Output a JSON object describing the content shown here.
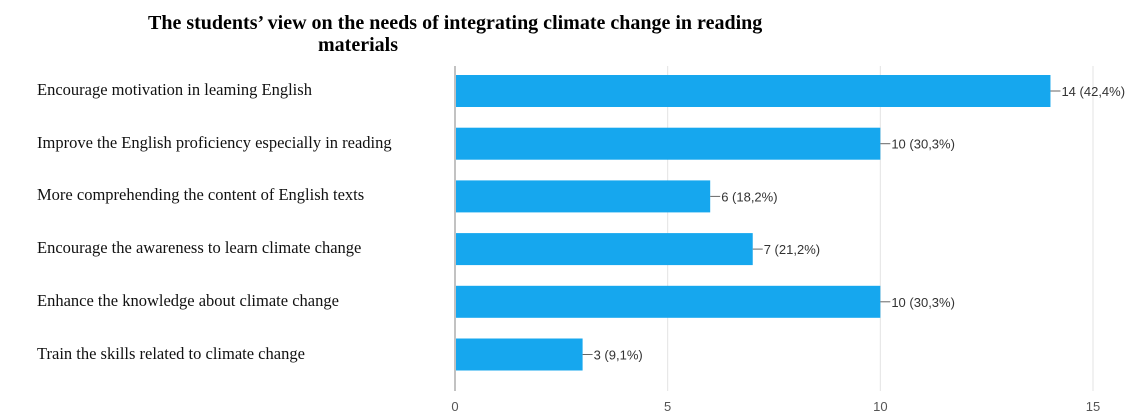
{
  "chart_data": {
    "type": "bar",
    "orientation": "horizontal",
    "title": "The students’ view on the needs of integrating climate change in reading materials",
    "categories": [
      "Encourage motivation in leaming English",
      "Improve the English proficiency especially in reading",
      "More comprehending the content of English texts",
      "Encourage the awareness to learn climate change",
      "Enhance the knowledge about climate change",
      "Train the skills related to climate change"
    ],
    "values": [
      14,
      10,
      6,
      7,
      10,
      3
    ],
    "data_labels": [
      "14 (42,4%)",
      "10 (30,3%)",
      "6 (18,2%)",
      "7 (21,2%)",
      "10 (30,3%)",
      "3 (9,1%)"
    ],
    "xlim": [
      0,
      15
    ],
    "x_ticks": [
      "0",
      "5",
      "10",
      "15"
    ],
    "bar_color": "#16a7ee",
    "grid": true,
    "xlabel": "",
    "ylabel": ""
  }
}
